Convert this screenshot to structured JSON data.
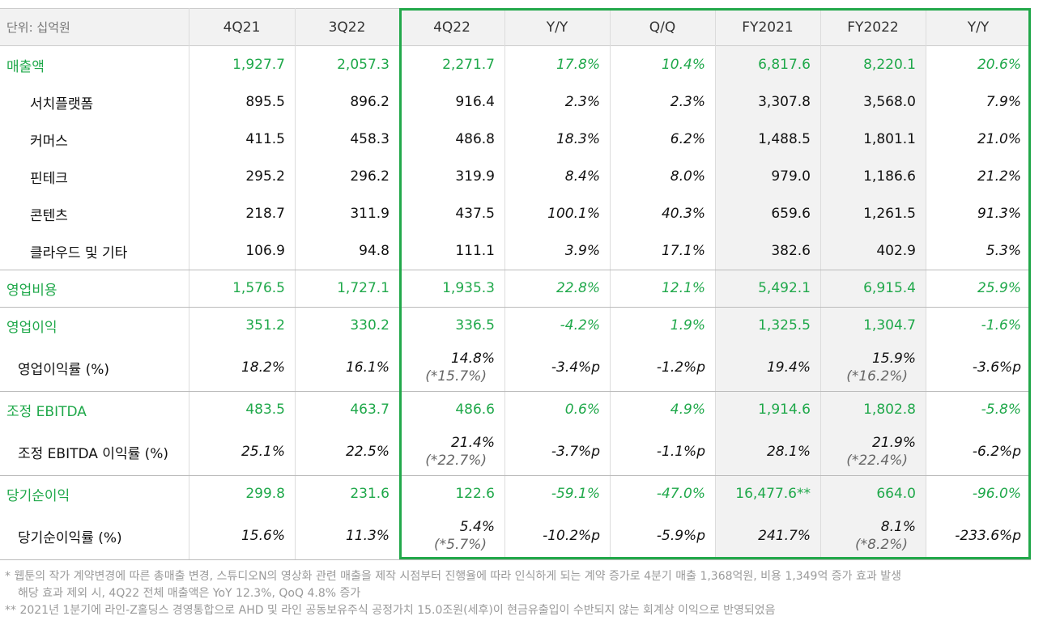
{
  "table": {
    "header": [
      "단위: 십억원",
      "4Q21",
      "3Q22",
      "4Q22",
      "Y/Y",
      "Q/Q",
      "FY2021",
      "FY2022",
      "Y/Y"
    ],
    "sections": [
      {
        "rows": [
          {
            "label": "매출액",
            "cells": [
              "1,927.7",
              "2,057.3",
              "2,271.7",
              "17.8%",
              "10.4%",
              "6,817.6",
              "8,220.1",
              "20.6%"
            ]
          },
          {
            "label": "서치플랫폼",
            "cells": [
              "895.5",
              "896.2",
              "916.4",
              "2.3%",
              "2.3%",
              "3,307.8",
              "3,568.0",
              "7.9%"
            ]
          },
          {
            "label": "커머스",
            "cells": [
              "411.5",
              "458.3",
              "486.8",
              "18.3%",
              "6.2%",
              "1,488.5",
              "1,801.1",
              "21.0%"
            ]
          },
          {
            "label": "핀테크",
            "cells": [
              "295.2",
              "296.2",
              "319.9",
              "8.4%",
              "8.0%",
              "979.0",
              "1,186.6",
              "21.2%"
            ]
          },
          {
            "label": "콘텐츠",
            "cells": [
              "218.7",
              "311.9",
              "437.5",
              "100.1%",
              "40.3%",
              "659.6",
              "1,261.5",
              "91.3%"
            ]
          },
          {
            "label": "클라우드 및 기타",
            "cells": [
              "106.9",
              "94.8",
              "111.1",
              "3.9%",
              "17.1%",
              "382.6",
              "402.9",
              "5.3%"
            ]
          }
        ]
      },
      {
        "rows": [
          {
            "label": "영업비용",
            "cells": [
              "1,576.5",
              "1,727.1",
              "1,935.3",
              "22.8%",
              "12.1%",
              "5,492.1",
              "6,915.4",
              "25.9%"
            ]
          }
        ]
      },
      {
        "rows": [
          {
            "label": "영업이익",
            "cells": [
              "351.2",
              "330.2",
              "336.5",
              "-4.2%",
              "1.9%",
              "1,325.5",
              "1,304.7",
              "-1.6%"
            ]
          },
          {
            "label": "영업이익률 (%)",
            "cells": [
              "18.2%",
              "16.1%",
              [
                "14.8%",
                "(*15.7%)"
              ],
              "-3.4%p",
              "-1.2%p",
              "19.4%",
              [
                "15.9%",
                "(*16.2%)"
              ],
              "-3.6%p"
            ]
          }
        ]
      },
      {
        "rows": [
          {
            "label": "조정 EBITDA",
            "cells": [
              "483.5",
              "463.7",
              "486.6",
              "0.6%",
              "4.9%",
              "1,914.6",
              "1,802.8",
              "-5.8%"
            ]
          },
          {
            "label": "조정 EBITDA 이익률 (%)",
            "cells": [
              "25.1%",
              "22.5%",
              [
                "21.4%",
                "(*22.7%)"
              ],
              "-3.7%p",
              "-1.1%p",
              "28.1%",
              [
                "21.9%",
                "(*22.4%)"
              ],
              "-6.2%p"
            ]
          }
        ]
      },
      {
        "rows": [
          {
            "label": "당기순이익",
            "cells": [
              "299.8",
              "231.6",
              "122.6",
              "-59.1%",
              "-47.0%",
              "16,477.6**",
              "664.0",
              "-96.0%"
            ]
          },
          {
            "label": "당기순이익률 (%)",
            "cells": [
              "15.6%",
              "11.3%",
              [
                "5.4%",
                "(*5.7%)"
              ],
              "-10.2%p",
              "-5.9%p",
              "241.7%",
              [
                "8.1%",
                "(*8.2%)"
              ],
              "-233.6%p"
            ]
          }
        ]
      }
    ],
    "notes": [
      [
        "* 웹툰의 작가 계약변경에 따른 총매출 변경, 스튜디오N의 영상화 관련 매출을 제작 시점부터 진행율에 따라 인식하게 되는 계약 증가로 4분기 매출 1,368억원, 비용 1,349억 증가 효과 발생",
        "해당 효과 제외 시, 4Q22 전체 매출액은 YoY 12.3%, QoQ 4.8% 증가"
      ],
      [
        "** 2021년 1분기에 라인-Z홀딩스 경영통합으로 AHD 및 라인 공동보유주식 공정가치 15.0조원(세후)이 현금유출입이 수반되지 않는 회계상 이익으로 반영되었음"
      ]
    ]
  }
}
